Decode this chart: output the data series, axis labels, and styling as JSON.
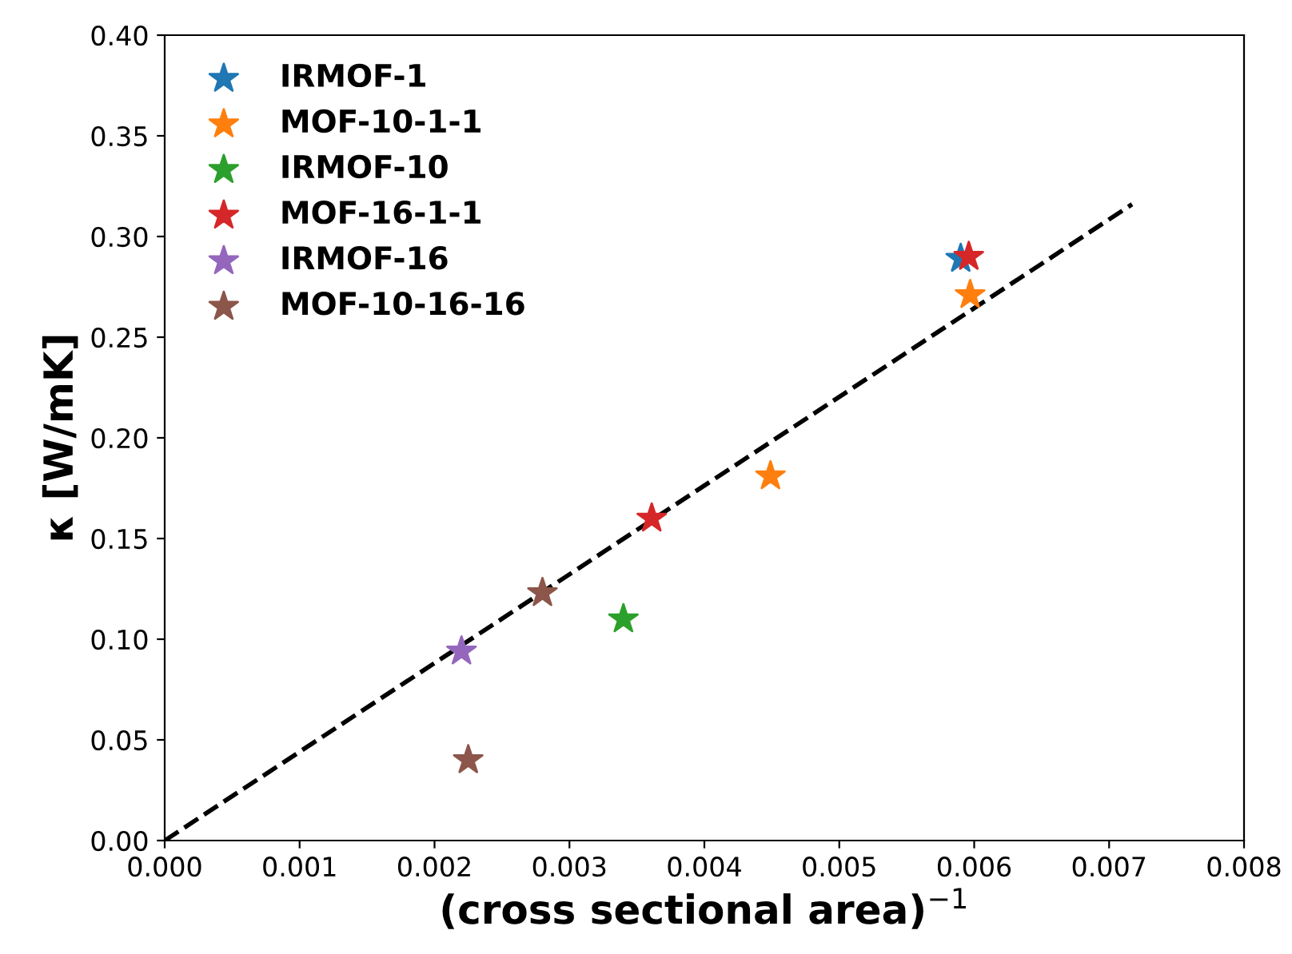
{
  "chart_data": {
    "type": "scatter",
    "xlabel": "(cross sectional area)$^{−1}$",
    "ylabel": "κ [W/mK]",
    "xlim": [
      0,
      0.008
    ],
    "xticks": [
      {
        "value": 0,
        "label": "0.000"
      },
      0.001,
      0.002,
      0.003,
      0.004,
      0.005,
      0.006,
      0.007,
      {
        "value": 0.008,
        "label": "0.008"
      }
    ],
    "ylim": [
      0,
      0.4
    ],
    "yticks": [
      {
        "value": 0,
        "label": "0.00"
      },
      {
        "value": 0.05,
        "label": "0.05"
      },
      {
        "value": 0.1,
        "label": "0.10"
      },
      {
        "value": 0.15,
        "label": "0.15"
      },
      {
        "value": 0.2,
        "label": "0.20"
      },
      {
        "value": 0.25,
        "label": "0.25"
      },
      {
        "value": 0.3,
        "label": "0.30"
      },
      {
        "value": 0.35,
        "label": "0.35"
      },
      {
        "value": 0.4,
        "label": "0.40"
      }
    ],
    "marker": "star",
    "legend": "top left",
    "grid": false,
    "series": [
      {
        "type": "line",
        "color": "#000000",
        "line_style": "dashed",
        "marker": "none",
        "x": [
          0,
          0.00717
        ],
        "values": [
          0,
          0.316
        ]
      },
      {
        "name": "IRMOF-1",
        "color": "#1f77b4",
        "x": [
          0.0059
        ],
        "values": [
          0.289
        ]
      },
      {
        "name": "MOF-10-1-1",
        "color": "#ff7f0e",
        "x": [
          0.00597,
          0.00449
        ],
        "values": [
          0.271,
          0.181
        ]
      },
      {
        "name": "IRMOF-10",
        "color": "#2ca02c",
        "x": [
          0.0034
        ],
        "values": [
          0.11
        ]
      },
      {
        "name": "MOF-16-1-1",
        "color": "#d62728",
        "x": [
          0.00361,
          0.00596
        ],
        "values": [
          0.16,
          0.29
        ]
      },
      {
        "name": "IRMOF-16",
        "color": "#9467bd",
        "x": [
          0.0022
        ],
        "values": [
          0.094
        ]
      },
      {
        "name": "MOF-10-16-16",
        "color": "#8c564b",
        "x": [
          0.0028,
          0.00225
        ],
        "values": [
          0.123,
          0.04
        ]
      }
    ]
  }
}
